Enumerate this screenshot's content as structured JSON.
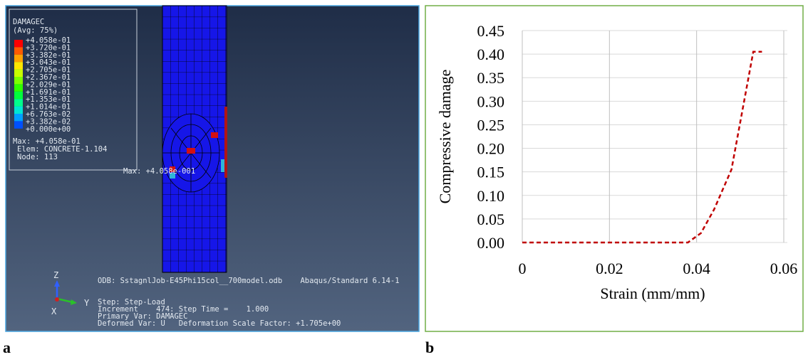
{
  "panel_labels": [
    "a",
    "b"
  ],
  "panel_a": {
    "legend": {
      "title": "DAMAGEC",
      "subtitle": "(Avg: 75%)",
      "levels": [
        "+4.058e-01",
        "+3.720e-01",
        "+3.382e-01",
        "+3.043e-01",
        "+2.705e-01",
        "+2.367e-01",
        "+2.029e-01",
        "+1.691e-01",
        "+1.353e-01",
        "+1.014e-01",
        "+6.763e-02",
        "+3.382e-02",
        "+0.000e+00"
      ],
      "max": "Max: +4.058e-01",
      "elem": "Elem: CONCRETE-1.104",
      "node": "Node: 113"
    },
    "max_marker": "Max: +4.058e-001",
    "odb": "ODB: SstagnlJob-E45Phi15col__700model.odb    Abaqus/Standard 6.14-1",
    "info": [
      "Step: Step-Load",
      "Increment    474: Step Time =    1.000",
      "Primary Var: DAMAGEC",
      "Deformed Var: U   Deformation Scale Factor: +1.705e+00"
    ],
    "triad": [
      "Z",
      "Y",
      "X"
    ]
  },
  "chart_data": {
    "type": "line",
    "x_label": "Strain (mm/mm)",
    "y_label": "Compressive damage",
    "x": [
      0,
      0.038,
      0.041,
      0.044,
      0.048,
      0.053,
      0.055
    ],
    "series": [
      {
        "color": "#c00000",
        "values": [
          0,
          0,
          0.02,
          0.07,
          0.155,
          0.405,
          0.405
        ]
      }
    ],
    "line_style": "dashed",
    "xlim": [
      0,
      0.06
    ],
    "xticks": [
      0,
      0.02,
      0.04,
      0.06
    ],
    "ylim": [
      0,
      0.45
    ],
    "yticks": [
      {
        "value": 0,
        "label": "0.00"
      },
      0.05,
      {
        "value": 0.1,
        "label": "0.10"
      },
      0.15,
      {
        "value": 0.2,
        "label": "0.20"
      },
      0.25,
      {
        "value": 0.3,
        "label": "0.30"
      },
      0.35,
      {
        "value": 0.4,
        "label": "0.40"
      },
      0.45
    ],
    "grid": true
  }
}
